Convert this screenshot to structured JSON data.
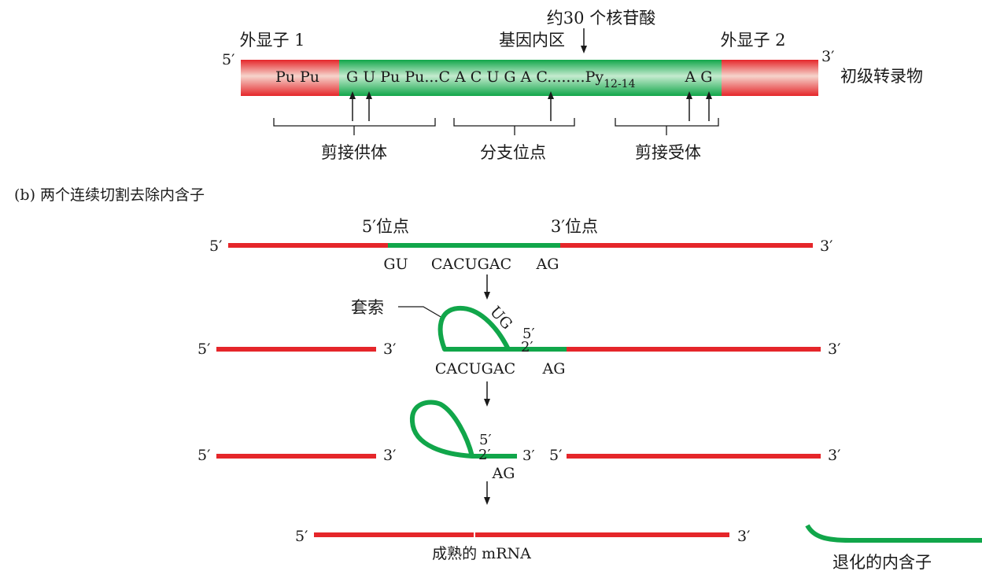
{
  "colors": {
    "exon_red": "#e5262a",
    "exon_light": "#f6d4cc",
    "intron_green": "#11a64a",
    "intron_light": "#c4ebcf",
    "ink": "#1a1a1a"
  },
  "part_a": {
    "top_label": "约30 个核苷酸",
    "exon1_label": "外显子 1",
    "intron_label": "基因内区",
    "exon2_label": "外显子 2",
    "five_prime": "5′",
    "three_prime": "3′",
    "transcript_label": "初级转录物",
    "exon1_seq": "Pu Pu",
    "intron_seq_main": "G U Pu Pu...C A C U G A C........Py",
    "intron_seq_sub": "12-14",
    "intron_seq_end": "A G",
    "donor_label": "剪接供体",
    "branch_label": "分支位点",
    "acceptor_label": "剪接受体"
  },
  "part_b": {
    "title": "(b)  两个连续切割去除内含子",
    "step1": {
      "five_prime": "5′",
      "three_prime": "3′",
      "site5_label": "5′位点",
      "site3_label": "3′位点",
      "gu": "GU",
      "cacugac": "CACUGAC",
      "ag": "AG"
    },
    "step2": {
      "lariat_label": "套索",
      "ug": "UG",
      "five_prime_left": "5′",
      "three_prime_left": "3′",
      "lariat_5": "5′",
      "lariat_2": "2′",
      "three_prime_right": "3′",
      "cacugac": "CACUGAC",
      "ag": "AG"
    },
    "step3": {
      "five_prime_left": "5′",
      "three_prime_left": "3′",
      "lariat_5": "5′",
      "lariat_2": "2′",
      "lariat_3": "3′",
      "ag": "AG",
      "five_prime_right": "5′",
      "three_prime_right": "3′"
    },
    "step4": {
      "five_prime": "5′",
      "three_prime": "3′",
      "mrna_label": "成熟的 mRNA",
      "degraded_label": "退化的内含子"
    }
  }
}
